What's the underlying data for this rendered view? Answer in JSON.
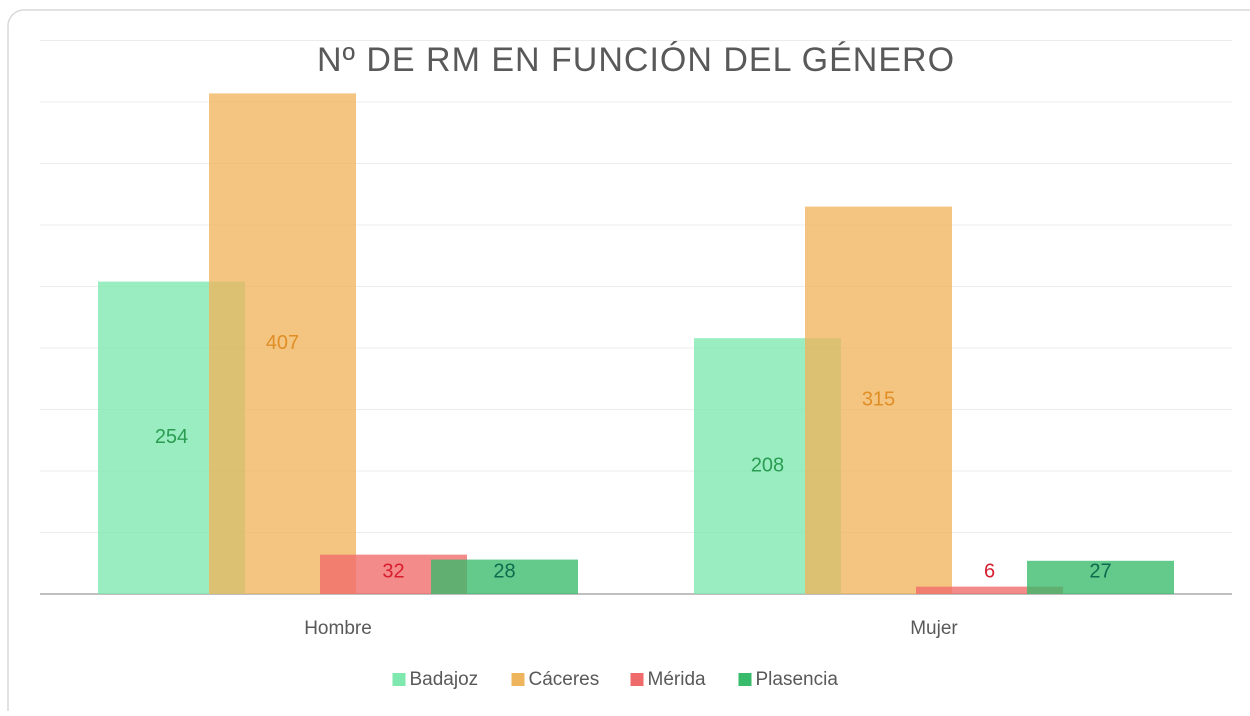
{
  "chart_data": {
    "type": "bar",
    "title": "Nº DE RM EN FUNCIÓN DEL GÉNERO",
    "categories": [
      "Hombre",
      "Mujer"
    ],
    "series": [
      {
        "name": "Badajoz",
        "color": "#7ee8ae",
        "label_color": "#2a9d52",
        "values": [
          254,
          208
        ]
      },
      {
        "name": "Cáceres",
        "color": "#efb55d",
        "label_color": "#e08e26",
        "values": [
          407,
          315
        ]
      },
      {
        "name": "Mérida",
        "color": "#ef6a6a",
        "label_color": "#d81e2e",
        "values": [
          32,
          6
        ]
      },
      {
        "name": "Plasencia",
        "color": "#38bb6a",
        "label_color": "#0f6b4e",
        "values": [
          28,
          27
        ]
      }
    ],
    "ylim": [
      0,
      450
    ],
    "yticks": [
      0,
      50,
      100,
      150,
      200,
      250,
      300,
      350,
      400,
      450
    ],
    "grid": true,
    "legend": "bottom"
  }
}
